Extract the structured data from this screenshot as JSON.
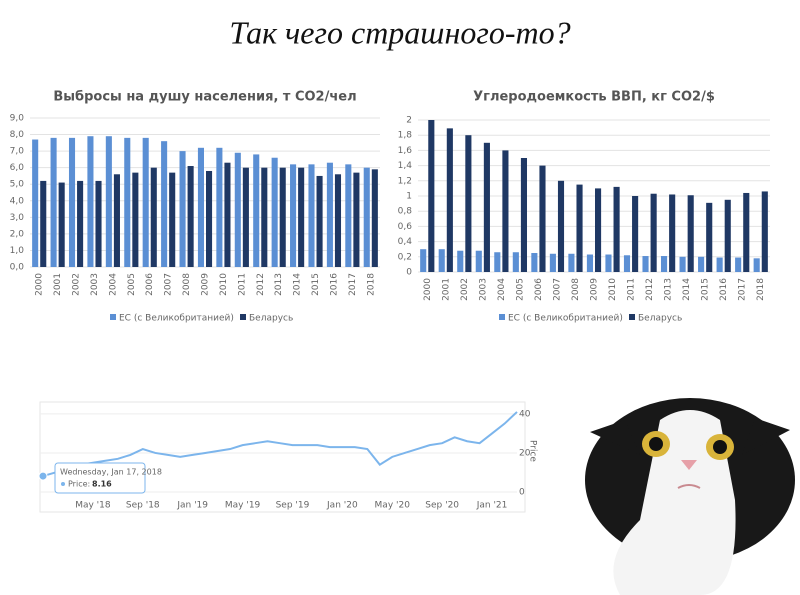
{
  "title": "Так чего страшного-то?",
  "chart_data": [
    {
      "type": "bar",
      "title": "Выбросы на душу населения, т CO2/чел",
      "categories": [
        "2000",
        "2001",
        "2002",
        "2003",
        "2004",
        "2005",
        "2006",
        "2007",
        "2008",
        "2009",
        "2010",
        "2011",
        "2012",
        "2013",
        "2014",
        "2015",
        "2016",
        "2017",
        "2018"
      ],
      "series": [
        {
          "name": "ЕС (с Великобританией)",
          "color": "#5b8fd4",
          "values": [
            7.7,
            7.8,
            7.8,
            7.9,
            7.9,
            7.8,
            7.8,
            7.6,
            7.0,
            7.2,
            7.2,
            6.9,
            6.8,
            6.6,
            6.2,
            6.2,
            6.3,
            6.2,
            6.0
          ]
        },
        {
          "name": "Беларусь",
          "color": "#1f3864",
          "values": [
            5.2,
            5.1,
            5.2,
            5.2,
            5.6,
            5.7,
            6.0,
            5.7,
            6.1,
            5.8,
            6.3,
            6.0,
            6.0,
            6.0,
            6.0,
            5.5,
            5.6,
            5.7,
            5.9
          ]
        }
      ],
      "ylim": [
        0,
        9
      ],
      "yticks": [
        {
          "value": 0,
          "label": "0,0"
        },
        {
          "value": 1,
          "label": "1,0"
        },
        {
          "value": 2,
          "label": "2,0"
        },
        {
          "value": 3,
          "label": "3,0"
        },
        {
          "value": 4,
          "label": "4,0"
        },
        {
          "value": 5,
          "label": "5,0"
        },
        {
          "value": 6,
          "label": "6,0"
        },
        {
          "value": 7,
          "label": "7,0"
        },
        {
          "value": 8,
          "label": "8,0"
        },
        {
          "value": 9,
          "label": "9,0"
        }
      ],
      "grid": true,
      "legend": "bottom"
    },
    {
      "type": "bar",
      "title": "Углеродоемкость ВВП, кг CO2/$",
      "categories": [
        "2000",
        "2001",
        "2002",
        "2003",
        "2004",
        "2005",
        "2006",
        "2007",
        "2008",
        "2009",
        "2010",
        "2011",
        "2012",
        "2013",
        "2014",
        "2015",
        "2016",
        "2017",
        "2018"
      ],
      "series": [
        {
          "name": "ЕС (с Великобританией)",
          "color": "#5b8fd4",
          "values": [
            0.3,
            0.3,
            0.28,
            0.28,
            0.26,
            0.26,
            0.25,
            0.24,
            0.24,
            0.23,
            0.23,
            0.22,
            0.21,
            0.21,
            0.2,
            0.2,
            0.19,
            0.19,
            0.18
          ]
        },
        {
          "name": "Беларусь",
          "color": "#1f3864",
          "values": [
            2.0,
            1.89,
            1.8,
            1.7,
            1.6,
            1.5,
            1.4,
            1.2,
            1.15,
            1.1,
            1.12,
            1.0,
            1.03,
            1.02,
            1.01,
            0.91,
            0.95,
            1.04,
            1.06
          ]
        }
      ],
      "ylim": [
        0,
        2
      ],
      "yticks": [
        0,
        {
          "value": 0.2,
          "label": "0,2"
        },
        {
          "value": 0.4,
          "label": "0,4"
        },
        {
          "value": 0.6,
          "label": "0,6"
        },
        {
          "value": 0.8,
          "label": "0,8"
        },
        1,
        {
          "value": 1.2,
          "label": "1,2"
        },
        {
          "value": 1.4,
          "label": "1,4"
        },
        {
          "value": 1.6,
          "label": "1,6"
        },
        {
          "value": 1.8,
          "label": "1,8"
        },
        2
      ],
      "grid": true,
      "legend": "bottom"
    },
    {
      "type": "line",
      "x": [
        null,
        null,
        null,
        null,
        "May '18",
        null,
        null,
        null,
        "Sep '18",
        null,
        null,
        null,
        "Jan '19",
        null,
        null,
        null,
        "May '19",
        null,
        null,
        null,
        "Sep '19",
        null,
        null,
        null,
        "Jan '20",
        null,
        null,
        null,
        "May '20",
        null,
        null,
        null,
        "Sep '20",
        null,
        null,
        null,
        "Jan '21",
        null,
        null
      ],
      "series": [
        {
          "name": "Price",
          "color": "#7cb5ec",
          "values": [
            8.16,
            10,
            12,
            14,
            15,
            16,
            17,
            19,
            22,
            20,
            19,
            18,
            19,
            20,
            21,
            22,
            24,
            25,
            26,
            25,
            24,
            24,
            24,
            23,
            23,
            23,
            22,
            14,
            18,
            20,
            22,
            24,
            25,
            28,
            26,
            25,
            30,
            35,
            41
          ]
        }
      ],
      "ylim": [
        0,
        42
      ],
      "yticks": [
        0,
        20,
        40
      ],
      "ylabel": "Price",
      "grid": true,
      "tooltip": {
        "title": "Wednesday, Jan 17, 2018",
        "label": "Price:",
        "value": "8.16"
      }
    }
  ]
}
